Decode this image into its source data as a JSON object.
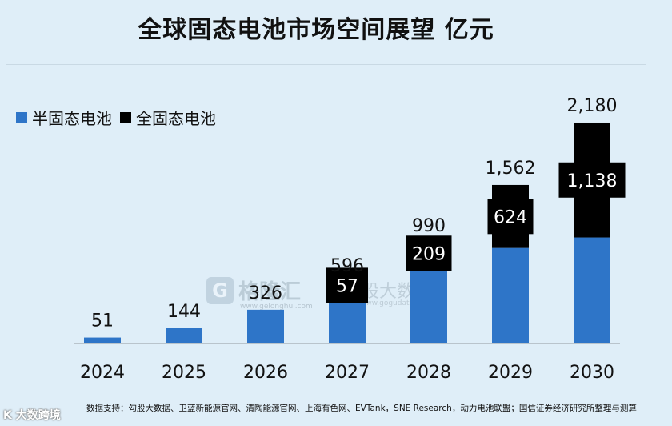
{
  "chart_data": {
    "type": "bar",
    "title": "全球固态电池市场空间展望 亿元",
    "categories": [
      "2024",
      "2025",
      "2026",
      "2027",
      "2028",
      "2029",
      "2030"
    ],
    "series": [
      {
        "name": "半固态电池",
        "values": [
          51,
          144,
          326,
          539,
          781,
          938,
          1042
        ]
      },
      {
        "name": "全固态电池",
        "values": [
          0,
          0,
          0,
          57,
          209,
          624,
          1138
        ]
      }
    ],
    "totals": [
      "51",
      "144",
      "326",
      "596",
      "990",
      "1,562",
      "2,180"
    ],
    "segment_labels": [
      "",
      "",
      "",
      "57",
      "209",
      "624",
      "1,138"
    ],
    "ylim": [
      0,
      2600
    ],
    "colors": {
      "semi": "#2e75c8",
      "full": "#000000"
    }
  },
  "legend": {
    "semi_label": "半固态电池",
    "full_label": "全固态电池"
  },
  "watermark": {
    "logo": "G",
    "name": "格隆汇",
    "sub": "www.gelonghui.com",
    "right": "勾股大数据",
    "right_sub": "www.gogudata.com"
  },
  "source": "数据支持：勾股大数据、卫蓝新能源官网、清陶能源官网、上海有色网、EVTank，SNE Research，动力电池联盟；国信证券经济研究所整理与测算",
  "corner_logo": "K  大数跨境"
}
